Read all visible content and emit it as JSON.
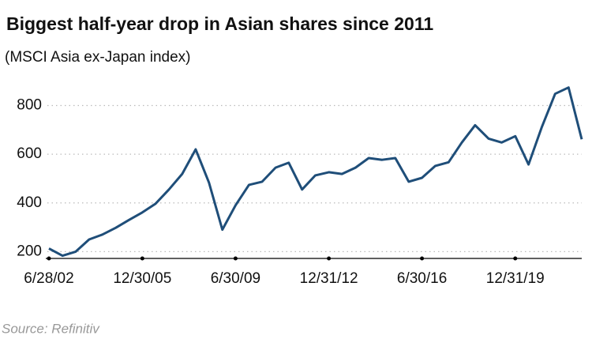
{
  "chart_data": {
    "type": "line",
    "title": "Biggest half-year drop in Asian shares since 2011",
    "subtitle": "(MSCI Asia ex-Japan index)",
    "source": "Source: Refinitiv",
    "color": "#1f4e79",
    "grid": true,
    "x": [
      "2002-06-28",
      "2002-12-31",
      "2003-06-30",
      "2003-12-31",
      "2004-06-30",
      "2004-12-31",
      "2005-06-30",
      "2005-12-30",
      "2006-06-30",
      "2006-12-29",
      "2007-06-29",
      "2007-12-31",
      "2008-06-30",
      "2008-12-31",
      "2009-06-30",
      "2009-12-31",
      "2010-06-30",
      "2010-12-31",
      "2011-06-30",
      "2011-12-30",
      "2012-06-29",
      "2012-12-31",
      "2013-06-28",
      "2013-12-31",
      "2014-06-30",
      "2014-12-31",
      "2015-06-30",
      "2015-12-31",
      "2016-06-30",
      "2016-12-30",
      "2017-06-30",
      "2017-12-29",
      "2018-06-29",
      "2018-12-31",
      "2019-06-28",
      "2019-12-31",
      "2020-06-30",
      "2020-12-31",
      "2021-06-30",
      "2021-12-31",
      "2022-06-30"
    ],
    "values": [
      213,
      183,
      200,
      250,
      270,
      298,
      330,
      361,
      397,
      455,
      519,
      620,
      484,
      290,
      390,
      474,
      487,
      545,
      565,
      455,
      513,
      526,
      519,
      545,
      584,
      577,
      584,
      487,
      503,
      552,
      567,
      648,
      719,
      664,
      648,
      674,
      558,
      713,
      848,
      874,
      661
    ],
    "xlim": [
      "2002-06-28",
      "2022-06-30"
    ],
    "xticks": [
      {
        "value": "2002-06-28",
        "label": "6/28/02"
      },
      {
        "value": "2005-12-30",
        "label": "12/30/05"
      },
      {
        "value": "2009-06-30",
        "label": "6/30/09"
      },
      {
        "value": "2012-12-31",
        "label": "12/31/12"
      },
      {
        "value": "2016-06-30",
        "label": "6/30/16"
      },
      {
        "value": "2019-12-31",
        "label": "12/31/19"
      }
    ],
    "ylim": [
      172,
      860
    ],
    "yticks": [
      200,
      400,
      600,
      800
    ]
  }
}
